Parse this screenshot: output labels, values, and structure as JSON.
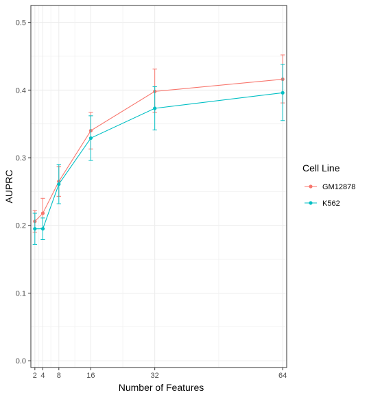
{
  "chart_data": {
    "type": "line",
    "title": "",
    "xlabel": "Number of Features",
    "ylabel": "AUPRC",
    "x": [
      2,
      4,
      8,
      16,
      32,
      64
    ],
    "x_ticks": [
      2,
      4,
      8,
      16,
      32,
      64
    ],
    "x_tick_labels": [
      "2",
      "4",
      "8",
      "16",
      "32",
      "64"
    ],
    "xlim": [
      1.0,
      65.0
    ],
    "ylim": [
      -0.01,
      0.525
    ],
    "y_ticks": [
      0.0,
      0.1,
      0.2,
      0.3,
      0.4,
      0.5
    ],
    "y_tick_labels": [
      "0.0",
      "0.1",
      "0.2",
      "0.3",
      "0.4",
      "0.5"
    ],
    "grid": true,
    "legend": {
      "title": "Cell Line",
      "position": "right"
    },
    "series": [
      {
        "name": "GM12878",
        "color": "#F8766D",
        "values": [
          0.206,
          0.218,
          0.265,
          0.34,
          0.398,
          0.416
        ],
        "err_low": [
          0.19,
          0.196,
          0.243,
          0.313,
          0.367,
          0.381
        ],
        "err_high": [
          0.222,
          0.24,
          0.287,
          0.367,
          0.431,
          0.452
        ]
      },
      {
        "name": "K562",
        "color": "#00BFC4",
        "values": [
          0.195,
          0.195,
          0.261,
          0.329,
          0.373,
          0.396
        ],
        "err_low": [
          0.172,
          0.179,
          0.232,
          0.296,
          0.341,
          0.355
        ],
        "err_high": [
          0.218,
          0.211,
          0.29,
          0.362,
          0.405,
          0.438
        ]
      }
    ]
  }
}
